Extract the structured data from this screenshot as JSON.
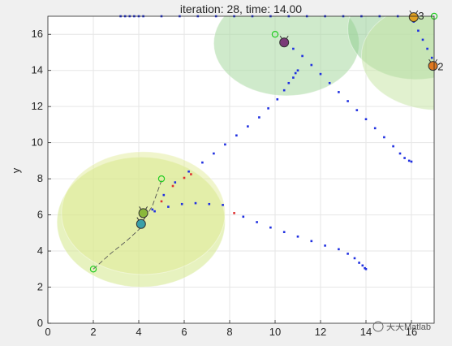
{
  "chart_data": {
    "type": "scatter",
    "title": "iteration: 28, time: 14.00",
    "xlabel": "",
    "ylabel": "y",
    "xlim": [
      0,
      17
    ],
    "ylim": [
      0,
      17
    ],
    "xticks": [
      "0",
      "2",
      "4",
      "6",
      "8",
      "10",
      "12",
      "14",
      "16"
    ],
    "yticks": [
      "0",
      "2",
      "4",
      "6",
      "8",
      "10",
      "12",
      "14",
      "16"
    ],
    "grid": true,
    "regions": [
      {
        "cx": 4.1,
        "cy": 5.6,
        "rx": 3.7,
        "ry": 3.6,
        "color": "#d4e88a",
        "opacity": 0.55
      },
      {
        "cx": 4.2,
        "cy": 6.1,
        "rx": 3.6,
        "ry": 3.4,
        "color": "#dde98f",
        "opacity": 0.45
      },
      {
        "cx": 10.5,
        "cy": 15.5,
        "rx": 3.2,
        "ry": 2.9,
        "color": "#a8d8a0",
        "opacity": 0.55
      },
      {
        "cx": 16.2,
        "cy": 16.3,
        "rx": 3.0,
        "ry": 2.8,
        "color": "#8ecc8e",
        "opacity": 0.5
      },
      {
        "cx": 17.2,
        "cy": 14.8,
        "rx": 3.4,
        "ry": 3.0,
        "color": "#c8e6a8",
        "opacity": 0.55
      }
    ],
    "series": [
      {
        "color": "#1f2fe0",
        "points": [
          [
            3.2,
            17
          ],
          [
            3.4,
            17
          ],
          [
            3.6,
            17
          ],
          [
            3.8,
            17
          ],
          [
            4.0,
            17
          ],
          [
            4.2,
            17
          ],
          [
            5.0,
            17
          ],
          [
            5.8,
            17
          ],
          [
            6.6,
            17
          ],
          [
            7.4,
            17
          ],
          [
            8.2,
            17
          ],
          [
            9.0,
            17
          ],
          [
            9.8,
            17
          ],
          [
            10.6,
            17
          ],
          [
            11.4,
            17
          ],
          [
            12.2,
            17
          ],
          [
            13.0,
            17
          ],
          [
            13.8,
            17
          ],
          [
            14.6,
            17
          ],
          [
            15.4,
            17
          ],
          [
            16.0,
            17
          ],
          [
            4.7,
            6.2
          ],
          [
            5.3,
            6.45
          ],
          [
            5.9,
            6.6
          ],
          [
            6.5,
            6.65
          ],
          [
            7.1,
            6.6
          ],
          [
            7.7,
            6.55
          ],
          [
            8.6,
            5.9
          ],
          [
            9.2,
            5.6
          ],
          [
            9.8,
            5.3
          ],
          [
            10.4,
            5.05
          ],
          [
            11.0,
            4.8
          ],
          [
            11.6,
            4.55
          ],
          [
            12.2,
            4.3
          ],
          [
            12.8,
            4.1
          ],
          [
            13.2,
            3.85
          ],
          [
            13.5,
            3.6
          ],
          [
            13.7,
            3.35
          ],
          [
            13.85,
            3.2
          ],
          [
            13.95,
            3.05
          ],
          [
            14.0,
            3.0
          ],
          [
            4.6,
            6.3
          ],
          [
            5.1,
            7.1
          ],
          [
            5.6,
            7.8
          ],
          [
            6.2,
            8.4
          ],
          [
            6.8,
            8.9
          ],
          [
            7.3,
            9.4
          ],
          [
            7.8,
            9.9
          ],
          [
            8.3,
            10.4
          ],
          [
            8.8,
            10.9
          ],
          [
            9.3,
            11.4
          ],
          [
            9.7,
            11.9
          ],
          [
            10.1,
            12.4
          ],
          [
            10.4,
            12.9
          ],
          [
            10.6,
            13.3
          ],
          [
            10.8,
            13.6
          ],
          [
            10.9,
            13.85
          ],
          [
            11.0,
            14.0
          ],
          [
            10.8,
            15.2
          ],
          [
            11.2,
            14.8
          ],
          [
            11.6,
            14.3
          ],
          [
            12.0,
            13.8
          ],
          [
            12.4,
            13.3
          ],
          [
            12.8,
            12.8
          ],
          [
            13.2,
            12.3
          ],
          [
            13.6,
            11.8
          ],
          [
            14.0,
            11.3
          ],
          [
            14.4,
            10.8
          ],
          [
            14.8,
            10.3
          ],
          [
            15.2,
            9.8
          ],
          [
            15.5,
            9.4
          ],
          [
            15.7,
            9.15
          ],
          [
            15.9,
            9.0
          ],
          [
            16.0,
            8.95
          ],
          [
            16.1,
            16.7
          ],
          [
            16.3,
            16.2
          ],
          [
            16.5,
            15.7
          ],
          [
            16.7,
            15.2
          ],
          [
            16.9,
            14.7
          ],
          [
            17.0,
            14.3
          ]
        ]
      },
      {
        "color": "#e03030",
        "points": [
          [
            5.0,
            6.75
          ],
          [
            5.5,
            7.6
          ],
          [
            6.0,
            8.05
          ],
          [
            6.3,
            8.25
          ],
          [
            8.2,
            6.1
          ]
        ]
      }
    ],
    "trail": [
      [
        2.0,
        3.0
      ],
      [
        2.8,
        3.9
      ],
      [
        3.5,
        4.6
      ],
      [
        4.1,
        5.3
      ]
    ],
    "trail2": [
      [
        4.1,
        5.5
      ],
      [
        4.6,
        6.5
      ],
      [
        5.0,
        7.9
      ]
    ],
    "goals": [
      [
        2.0,
        3.0
      ],
      [
        5.0,
        8.0
      ],
      [
        10.0,
        16.0
      ],
      [
        17.0,
        17.0
      ]
    ],
    "agents": [
      {
        "x": 4.2,
        "y": 6.1,
        "color": "#8ab83a"
      },
      {
        "x": 4.1,
        "y": 5.5,
        "color": "#3aa0a8"
      },
      {
        "x": 10.4,
        "y": 15.55,
        "color": "#7a3a78"
      },
      {
        "x": 16.1,
        "y": 16.95,
        "color": "#e0a020"
      },
      {
        "x": 16.95,
        "y": 14.25,
        "color": "#e07820"
      }
    ],
    "agent_labels": [
      {
        "x": 16.3,
        "y": 17.0,
        "text": "3"
      },
      {
        "x": 17.15,
        "y": 14.2,
        "text": "2"
      }
    ]
  },
  "watermark": "天天Matlab"
}
